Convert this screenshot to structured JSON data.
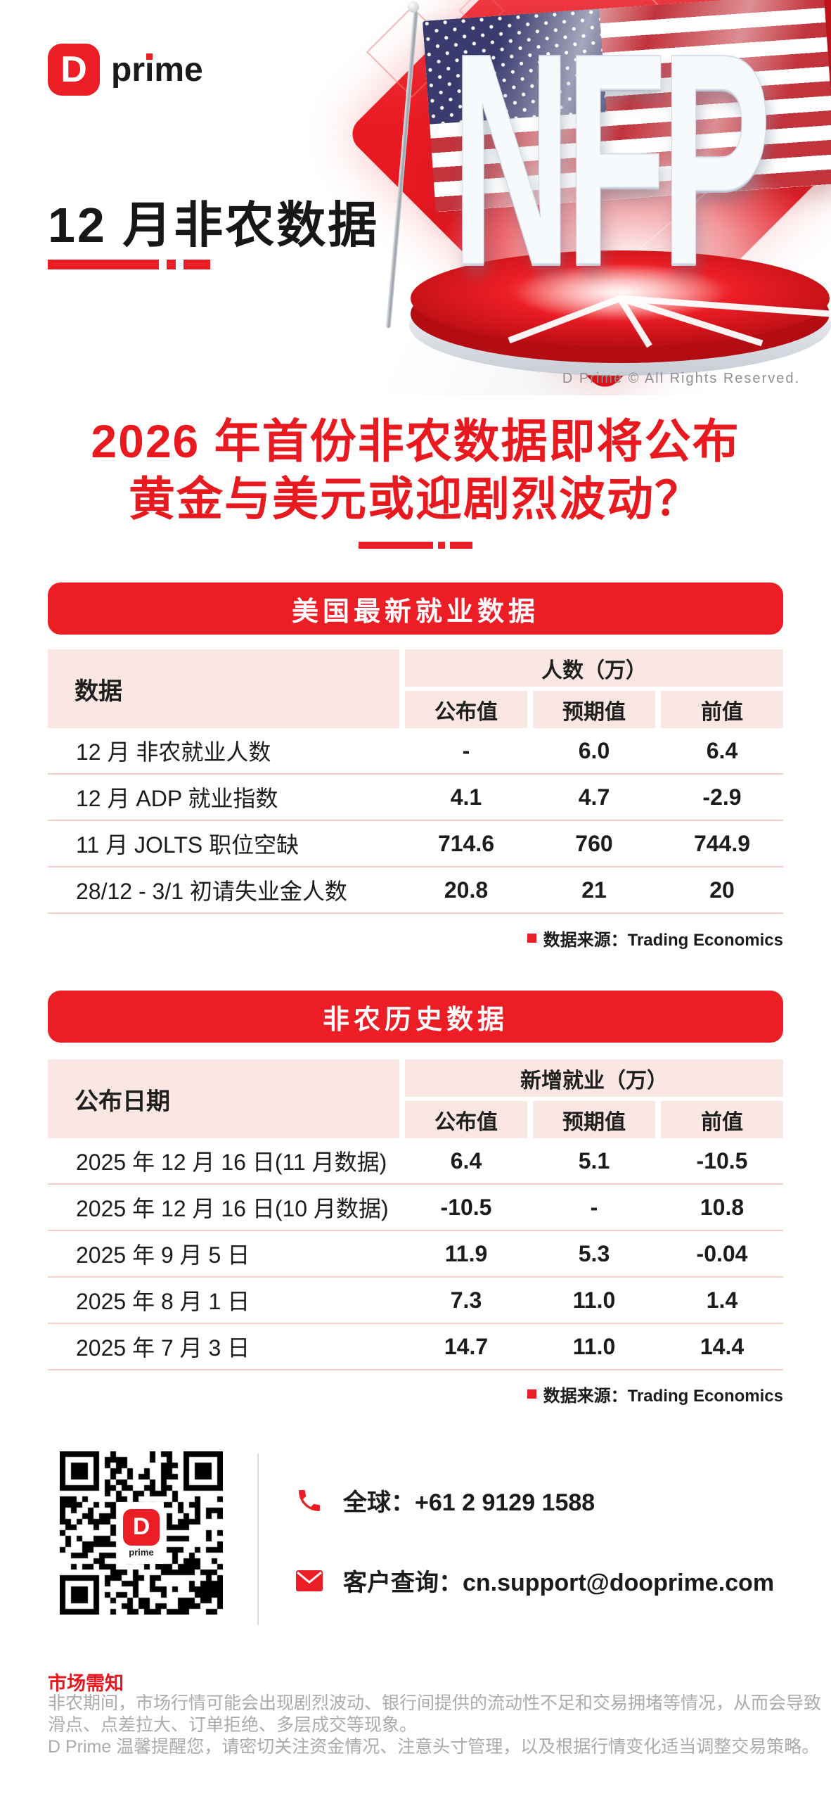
{
  "brand": {
    "logo_letter": "D",
    "logo_word_pre": "pr",
    "logo_word_i": "ı",
    "logo_word_post": "me"
  },
  "hero": {
    "nfp_text": "NFP",
    "copyright": "D Prime © All Rights Reserved."
  },
  "title": "12 月非农数据",
  "headline": {
    "line1": "2026 年首份非农数据即将公布",
    "line2": "黄金与美元或迎剧烈波动？"
  },
  "colors": {
    "brand_red": "#EC1D25",
    "headline_red": "#E8191F",
    "pink_header": "#FAE7E4",
    "row_line": "#F4CFC9",
    "text_dark": "#1C1C1C",
    "disclaimer_gray": "#ABABAB",
    "copyright_gray": "#8E8E8E"
  },
  "table1": {
    "title": "美国最新就业数据",
    "col_header": "数据",
    "group_header": "人数（万）",
    "sub_headers": [
      "公布值",
      "预期值",
      "前值"
    ],
    "rows": [
      {
        "label": "12 月 非农就业人数",
        "values": [
          "-",
          "6.0",
          "6.4"
        ]
      },
      {
        "label": "12 月 ADP 就业指数",
        "values": [
          "4.1",
          "4.7",
          "-2.9"
        ]
      },
      {
        "label": "11 月 JOLTS 职位空缺",
        "values": [
          "714.6",
          "760",
          "744.9"
        ]
      },
      {
        "label": "28/12 - 3/1 初请失业金人数",
        "values": [
          "20.8",
          "21",
          "20"
        ]
      }
    ],
    "source": "数据来源：Trading Economics"
  },
  "table2": {
    "title": "非农历史数据",
    "col_header": "公布日期",
    "group_header": "新增就业（万）",
    "sub_headers": [
      "公布值",
      "预期值",
      "前值"
    ],
    "rows": [
      {
        "label": "2025 年 12 月 16 日(11 月数据)",
        "values": [
          "6.4",
          "5.1",
          "-10.5"
        ]
      },
      {
        "label": "2025 年 12 月 16 日(10 月数据)",
        "values": [
          "-10.5",
          "-",
          "10.8"
        ]
      },
      {
        "label": "2025 年 9 月 5 日",
        "values": [
          "11.9",
          "5.3",
          "-0.04"
        ]
      },
      {
        "label": "2025 年 8 月 1 日",
        "values": [
          "7.3",
          "11.0",
          "1.4"
        ]
      },
      {
        "label": "2025 年 7 月 3 日",
        "values": [
          "14.7",
          "11.0",
          "14.4"
        ]
      }
    ],
    "source": "数据来源：Trading Economics"
  },
  "contact": {
    "phone_label": "全球：+61 2 9129 1588",
    "email_label": "客户查询：cn.support@dooprime.com",
    "qr_logo_letter": "D",
    "qr_logo_word": "prime"
  },
  "disclaimer": {
    "heading": "市场需知",
    "lines": [
      "非农期间，市场行情可能会出现剧烈波动、银行间提供的流动性不足和交易拥堵等情况，从而会导致",
      "滑点、点差拉大、订单拒绝、多层成交等现象。",
      "D Prime 温馨提醒您，请密切关注资金情况、注意头寸管理，以及根据行情变化适当调整交易策略。"
    ]
  }
}
